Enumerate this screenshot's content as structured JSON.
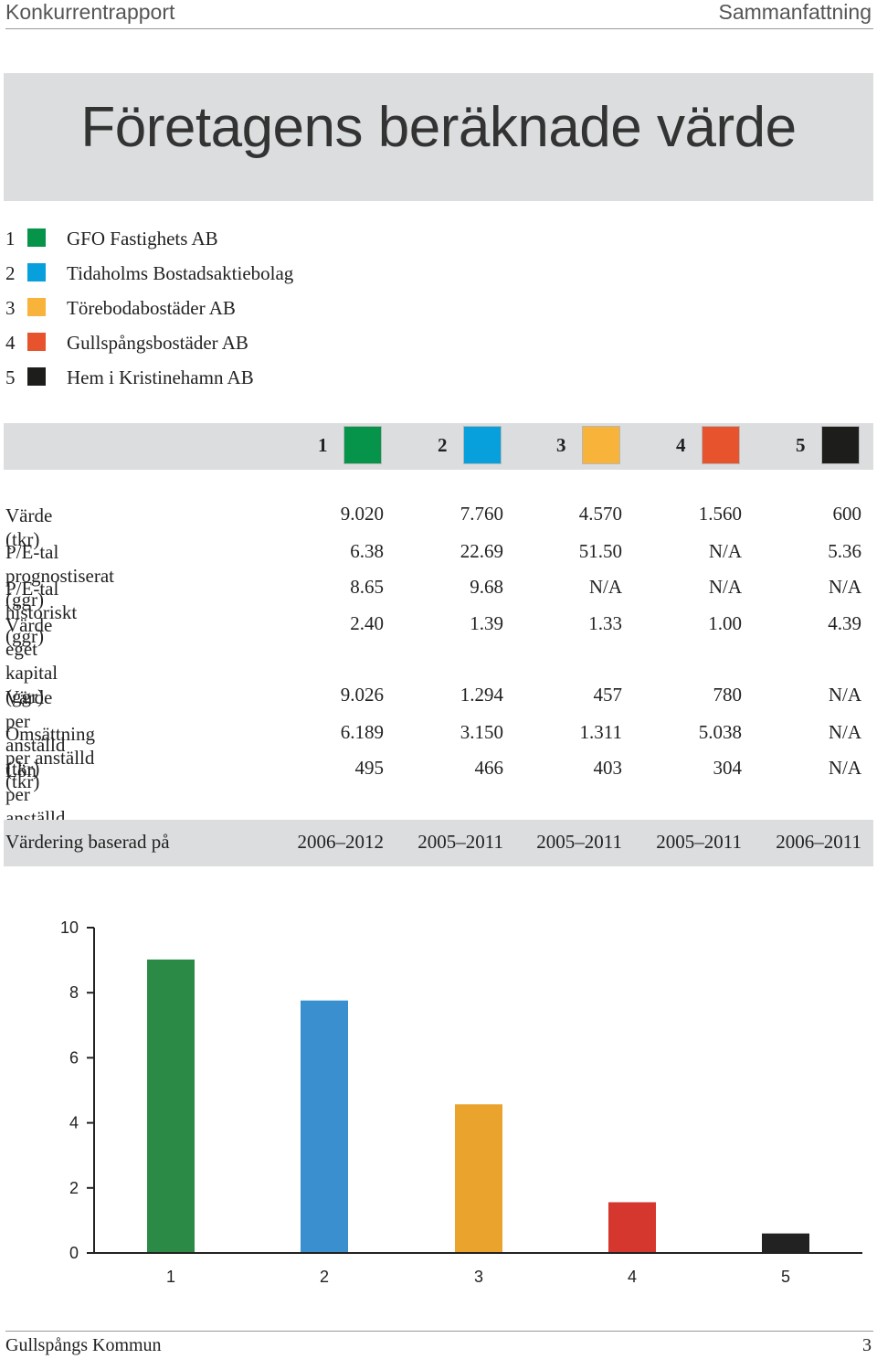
{
  "header": {
    "left": "Konkurrentrapport",
    "right": "Sammanfattning"
  },
  "title": "Företagens beräknade värde",
  "companies": [
    {
      "num": "1",
      "name": "GFO Fastighets AB",
      "color": "#06944a"
    },
    {
      "num": "2",
      "name": "Tidaholms Bostadsaktiebolag",
      "color": "#079fdc"
    },
    {
      "num": "3",
      "name": "Törebodabostäder AB",
      "color": "#f8b33a"
    },
    {
      "num": "4",
      "name": "Gullspångsbostäder AB",
      "color": "#e6532d"
    },
    {
      "num": "5",
      "name": "Hem i Kristinehamn AB",
      "color": "#1d1d1b"
    }
  ],
  "table1": [
    {
      "label": "Värde (tkr)",
      "values": [
        "9.020",
        "7.760",
        "4.570",
        "1.560",
        "600"
      ]
    },
    {
      "label": "P/E-tal prognostiserat (ggr)",
      "values": [
        "6.38",
        "22.69",
        "51.50",
        "N/A",
        "5.36"
      ]
    },
    {
      "label": "P/E-tal historiskt (ggr)",
      "values": [
        "8.65",
        "9.68",
        "N/A",
        "N/A",
        "N/A"
      ]
    },
    {
      "label": "Värde eget kapital (ggr)",
      "values": [
        "2.40",
        "1.39",
        "1.33",
        "1.00",
        "4.39"
      ]
    }
  ],
  "table2": [
    {
      "label": "Värde per anställd (tkr)",
      "values": [
        "9.026",
        "1.294",
        "457",
        "780",
        "N/A"
      ]
    },
    {
      "label": "Omsättning per anställd (tkr)",
      "values": [
        "6.189",
        "3.150",
        "1.311",
        "5.038",
        "N/A"
      ]
    },
    {
      "label": "Lön per anställd (tkr)",
      "values": [
        "495",
        "466",
        "403",
        "304",
        "N/A"
      ]
    }
  ],
  "basis": {
    "label": "Värdering baserad på",
    "values": [
      "2006–2012",
      "2005–2011",
      "2005–2011",
      "2005–2011",
      "2006–2011"
    ]
  },
  "chart_data": {
    "type": "bar",
    "categories": [
      "1",
      "2",
      "3",
      "4",
      "5"
    ],
    "values": [
      9.02,
      7.76,
      4.57,
      1.56,
      0.6
    ],
    "colors": [
      "#2c8a47",
      "#3a8fcf",
      "#eaa42d",
      "#d5372f",
      "#222222"
    ],
    "yticks": [
      "0",
      "2",
      "4",
      "6",
      "8",
      "10"
    ],
    "ylim": [
      0,
      10
    ],
    "title": "",
    "xlabel": "",
    "ylabel": "",
    "grid": false
  },
  "footer": {
    "left": "Gullspångs Kommun",
    "right": "3"
  }
}
